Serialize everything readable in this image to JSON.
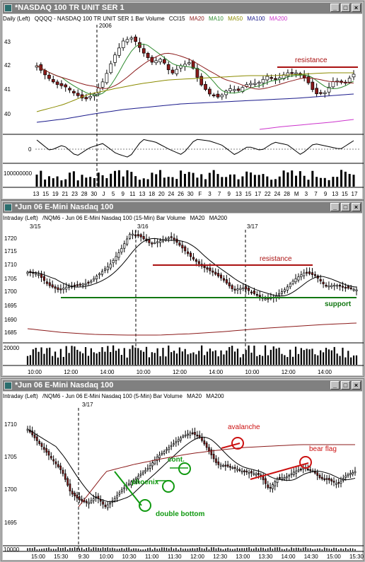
{
  "colors": {
    "up": "#ffffff",
    "down": "#8b1a1a",
    "ma20": "#8b1a1a",
    "ma10": "#2e8b2e",
    "ma50": "#8b8b00",
    "ma100": "#1a1a8b",
    "ma200": "#cc33cc",
    "resistance": "#aa1111",
    "support": "#117711",
    "annot_green": "#119911",
    "annot_red": "#cc1111"
  },
  "win1": {
    "title": "*NASDAQ 100 TR UNIT SER 1",
    "hdr_left": "Daily (Left)",
    "hdr_symbol": "QQQQ - NASDAQ 100 TR UNIT SER 1 Bar Volume",
    "hdr_cci": "CCI15",
    "hdr_ma20": "MA20",
    "hdr_ma10": "MA10",
    "hdr_ma50": "MA50",
    "hdr_ma100": "MA100",
    "hdr_ma200": "MA200",
    "year_label": "2006",
    "yticks": [
      "43",
      "42",
      "41",
      "40"
    ],
    "cci_tick": "0",
    "vol_tick": "100000000",
    "resistance_label": "resistance",
    "xticks": [
      "13",
      "15",
      "19",
      "21",
      "23",
      "28",
      "30",
      "J",
      "5",
      "9",
      "11",
      "13",
      "18",
      "20",
      "24",
      "26",
      "30",
      "F",
      "3",
      "7",
      "9",
      "13",
      "15",
      "17",
      "22",
      "24",
      "28",
      "M",
      "3",
      "7",
      "9",
      "13",
      "15",
      "17"
    ]
  },
  "win2": {
    "title": "*Jun 06  E-Mini Nasdaq 100",
    "hdr_left": "Intraday (Left)",
    "hdr_symbol": "/NQM6 - Jun 06 E-Mini Nasdaq 100 (15-Min) Bar Volume",
    "hdr_ma20": "MA20",
    "hdr_ma200": "MA200",
    "date1": "3/15",
    "date2": "3/16",
    "date3": "3/17",
    "yticks": [
      "1720",
      "1715",
      "1710",
      "1705",
      "1700",
      "1695",
      "1690",
      "1685"
    ],
    "vol_tick": "20000",
    "resistance_label": "resistance",
    "support_label": "support",
    "xticks": [
      "10:00",
      "12:00",
      "14:00",
      "10:00",
      "12:00",
      "14:00",
      "10:00",
      "12:00",
      "14:00"
    ]
  },
  "win3": {
    "title": "*Jun 06  E-Mini Nasdaq 100",
    "hdr_left": "Intraday (Left)",
    "hdr_symbol": "/NQM6 - Jun 06 E-Mini Nasdaq 100 (5-Min) Bar Volume",
    "hdr_ma20": "MA20",
    "hdr_ma200": "MA200",
    "date1": "3/17",
    "yticks": [
      "1710",
      "1705",
      "1700",
      "1695"
    ],
    "vol_tick": "10000",
    "labels": {
      "avalanche": "avalanche",
      "bear_flag": "bear flag",
      "cont": "cont.",
      "phoenix": "phoenix",
      "double_bottom": "double bottom"
    },
    "xticks": [
      "15:00",
      "15:30",
      "9:30",
      "10:00",
      "10:30",
      "11:00",
      "11:30",
      "12:00",
      "12:30",
      "13:00",
      "13:30",
      "14:00",
      "14:30",
      "15:00",
      "15:30"
    ]
  }
}
